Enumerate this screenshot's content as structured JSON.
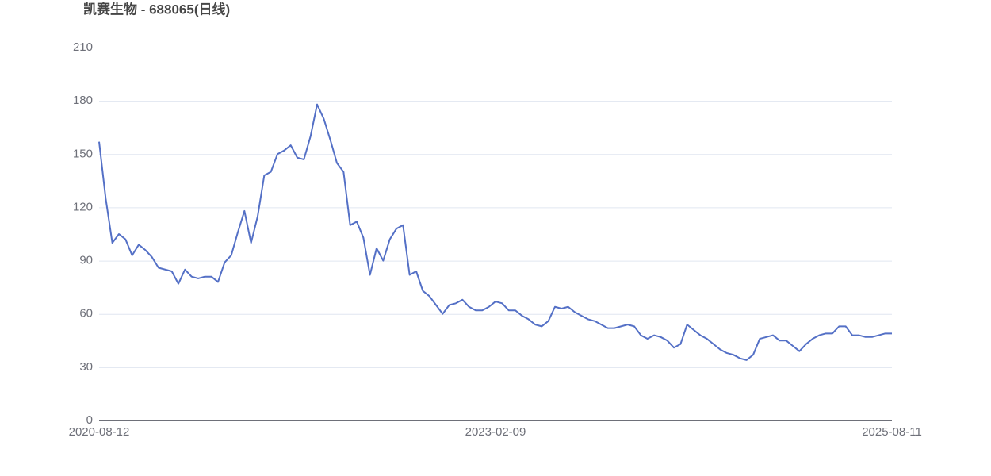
{
  "chart_data": {
    "type": "line",
    "title": "凯赛生物 - 688065(日线)",
    "categories": [
      "2020-08-12",
      null,
      null,
      null,
      null,
      null,
      null,
      null,
      null,
      null,
      null,
      null,
      null,
      null,
      null,
      null,
      null,
      null,
      null,
      null,
      null,
      null,
      null,
      null,
      null,
      null,
      null,
      null,
      null,
      null,
      null,
      null,
      null,
      null,
      null,
      null,
      null,
      null,
      null,
      null,
      null,
      null,
      null,
      null,
      null,
      null,
      null,
      null,
      null,
      null,
      null,
      null,
      null,
      null,
      null,
      null,
      null,
      null,
      null,
      null,
      "2023-02-09",
      null,
      null,
      null,
      null,
      null,
      null,
      null,
      null,
      null,
      null,
      null,
      null,
      null,
      null,
      null,
      null,
      null,
      null,
      null,
      null,
      null,
      null,
      null,
      null,
      null,
      null,
      null,
      null,
      null,
      null,
      null,
      null,
      null,
      null,
      null,
      null,
      null,
      null,
      null,
      null,
      null,
      null,
      null,
      null,
      null,
      null,
      null,
      null,
      null,
      null,
      null,
      null,
      null,
      null,
      null,
      null,
      null,
      null,
      null,
      "2025-08-11"
    ],
    "values": [
      157,
      125,
      100,
      105,
      102,
      93,
      99,
      96,
      92,
      86,
      85,
      84,
      77,
      85,
      81,
      80,
      81,
      81,
      78,
      89,
      93,
      106,
      118,
      100,
      115,
      138,
      140,
      150,
      152,
      155,
      148,
      147,
      160,
      178,
      170,
      158,
      145,
      140,
      110,
      112,
      103,
      82,
      97,
      90,
      102,
      108,
      110,
      82,
      84,
      73,
      70,
      65,
      60,
      65,
      66,
      68,
      64,
      62,
      62,
      64,
      67,
      66,
      62,
      62,
      59,
      57,
      54,
      53,
      56,
      64,
      63,
      64,
      61,
      59,
      57,
      56,
      54,
      52,
      52,
      53,
      54,
      53,
      48,
      46,
      48,
      47,
      45,
      41,
      43,
      54,
      51,
      48,
      46,
      43,
      40,
      38,
      37,
      35,
      34,
      37,
      46,
      47,
      48,
      45,
      45,
      42,
      39,
      43,
      46,
      48,
      49,
      49,
      53,
      53,
      48,
      48,
      47,
      47,
      48,
      49,
      49
    ],
    "color": "#5470c6",
    "ylim": [
      0,
      210
    ],
    "yticks": [
      0,
      30,
      60,
      90,
      120,
      150,
      180,
      210
    ],
    "grid": true
  }
}
